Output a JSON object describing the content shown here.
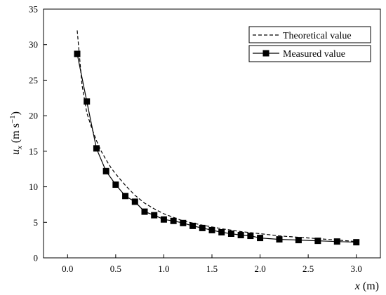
{
  "chart_data": {
    "type": "line",
    "xlabel": {
      "var": "x",
      "unit": " (m)"
    },
    "ylabel": {
      "var": "u",
      "sub": "x",
      "unit_open": " (m s",
      "sup": "−1",
      "unit_close": ")"
    },
    "xlim": [
      -0.25,
      3.25
    ],
    "ylim": [
      0,
      35
    ],
    "xticks": [
      0.0,
      0.5,
      1.0,
      1.5,
      2.0,
      2.5,
      3.0
    ],
    "xtick_labels": [
      "0.0",
      "0.5",
      "1.0",
      "1.5",
      "2.0",
      "2.5",
      "3.0"
    ],
    "yticks": [
      0,
      5,
      10,
      15,
      20,
      25,
      30,
      35
    ],
    "ytick_labels": [
      "0",
      "5",
      "10",
      "15",
      "20",
      "25",
      "30",
      "35"
    ],
    "grid": false,
    "legend_position": "top-right",
    "series": [
      {
        "name": "Theoretical value",
        "style": "dashed",
        "x": [
          0.1,
          0.15,
          0.2,
          0.25,
          0.3,
          0.35,
          0.4,
          0.45,
          0.5,
          0.6,
          0.7,
          0.8,
          0.9,
          1.0,
          1.2,
          1.4,
          1.6,
          1.8,
          2.0,
          2.2,
          2.4,
          2.6,
          2.8,
          3.0
        ],
        "y": [
          32.0,
          24.3,
          20.4,
          18.3,
          16.5,
          15.0,
          13.8,
          12.7,
          11.8,
          10.2,
          8.8,
          7.7,
          6.9,
          6.2,
          5.2,
          4.6,
          4.1,
          3.7,
          3.4,
          3.1,
          2.9,
          2.7,
          2.5,
          2.3
        ]
      },
      {
        "name": "Measured value",
        "style": "solid-square-markers",
        "x": [
          0.1,
          0.2,
          0.3,
          0.4,
          0.5,
          0.6,
          0.7,
          0.8,
          0.9,
          1.0,
          1.1,
          1.2,
          1.3,
          1.4,
          1.5,
          1.6,
          1.7,
          1.8,
          1.9,
          2.0,
          2.2,
          2.4,
          2.6,
          2.8,
          3.0
        ],
        "y": [
          28.7,
          22.0,
          15.4,
          12.2,
          10.3,
          8.7,
          7.9,
          6.5,
          6.0,
          5.4,
          5.2,
          4.9,
          4.5,
          4.2,
          3.9,
          3.6,
          3.4,
          3.2,
          3.1,
          2.8,
          2.6,
          2.5,
          2.4,
          2.3,
          2.2
        ]
      }
    ]
  }
}
